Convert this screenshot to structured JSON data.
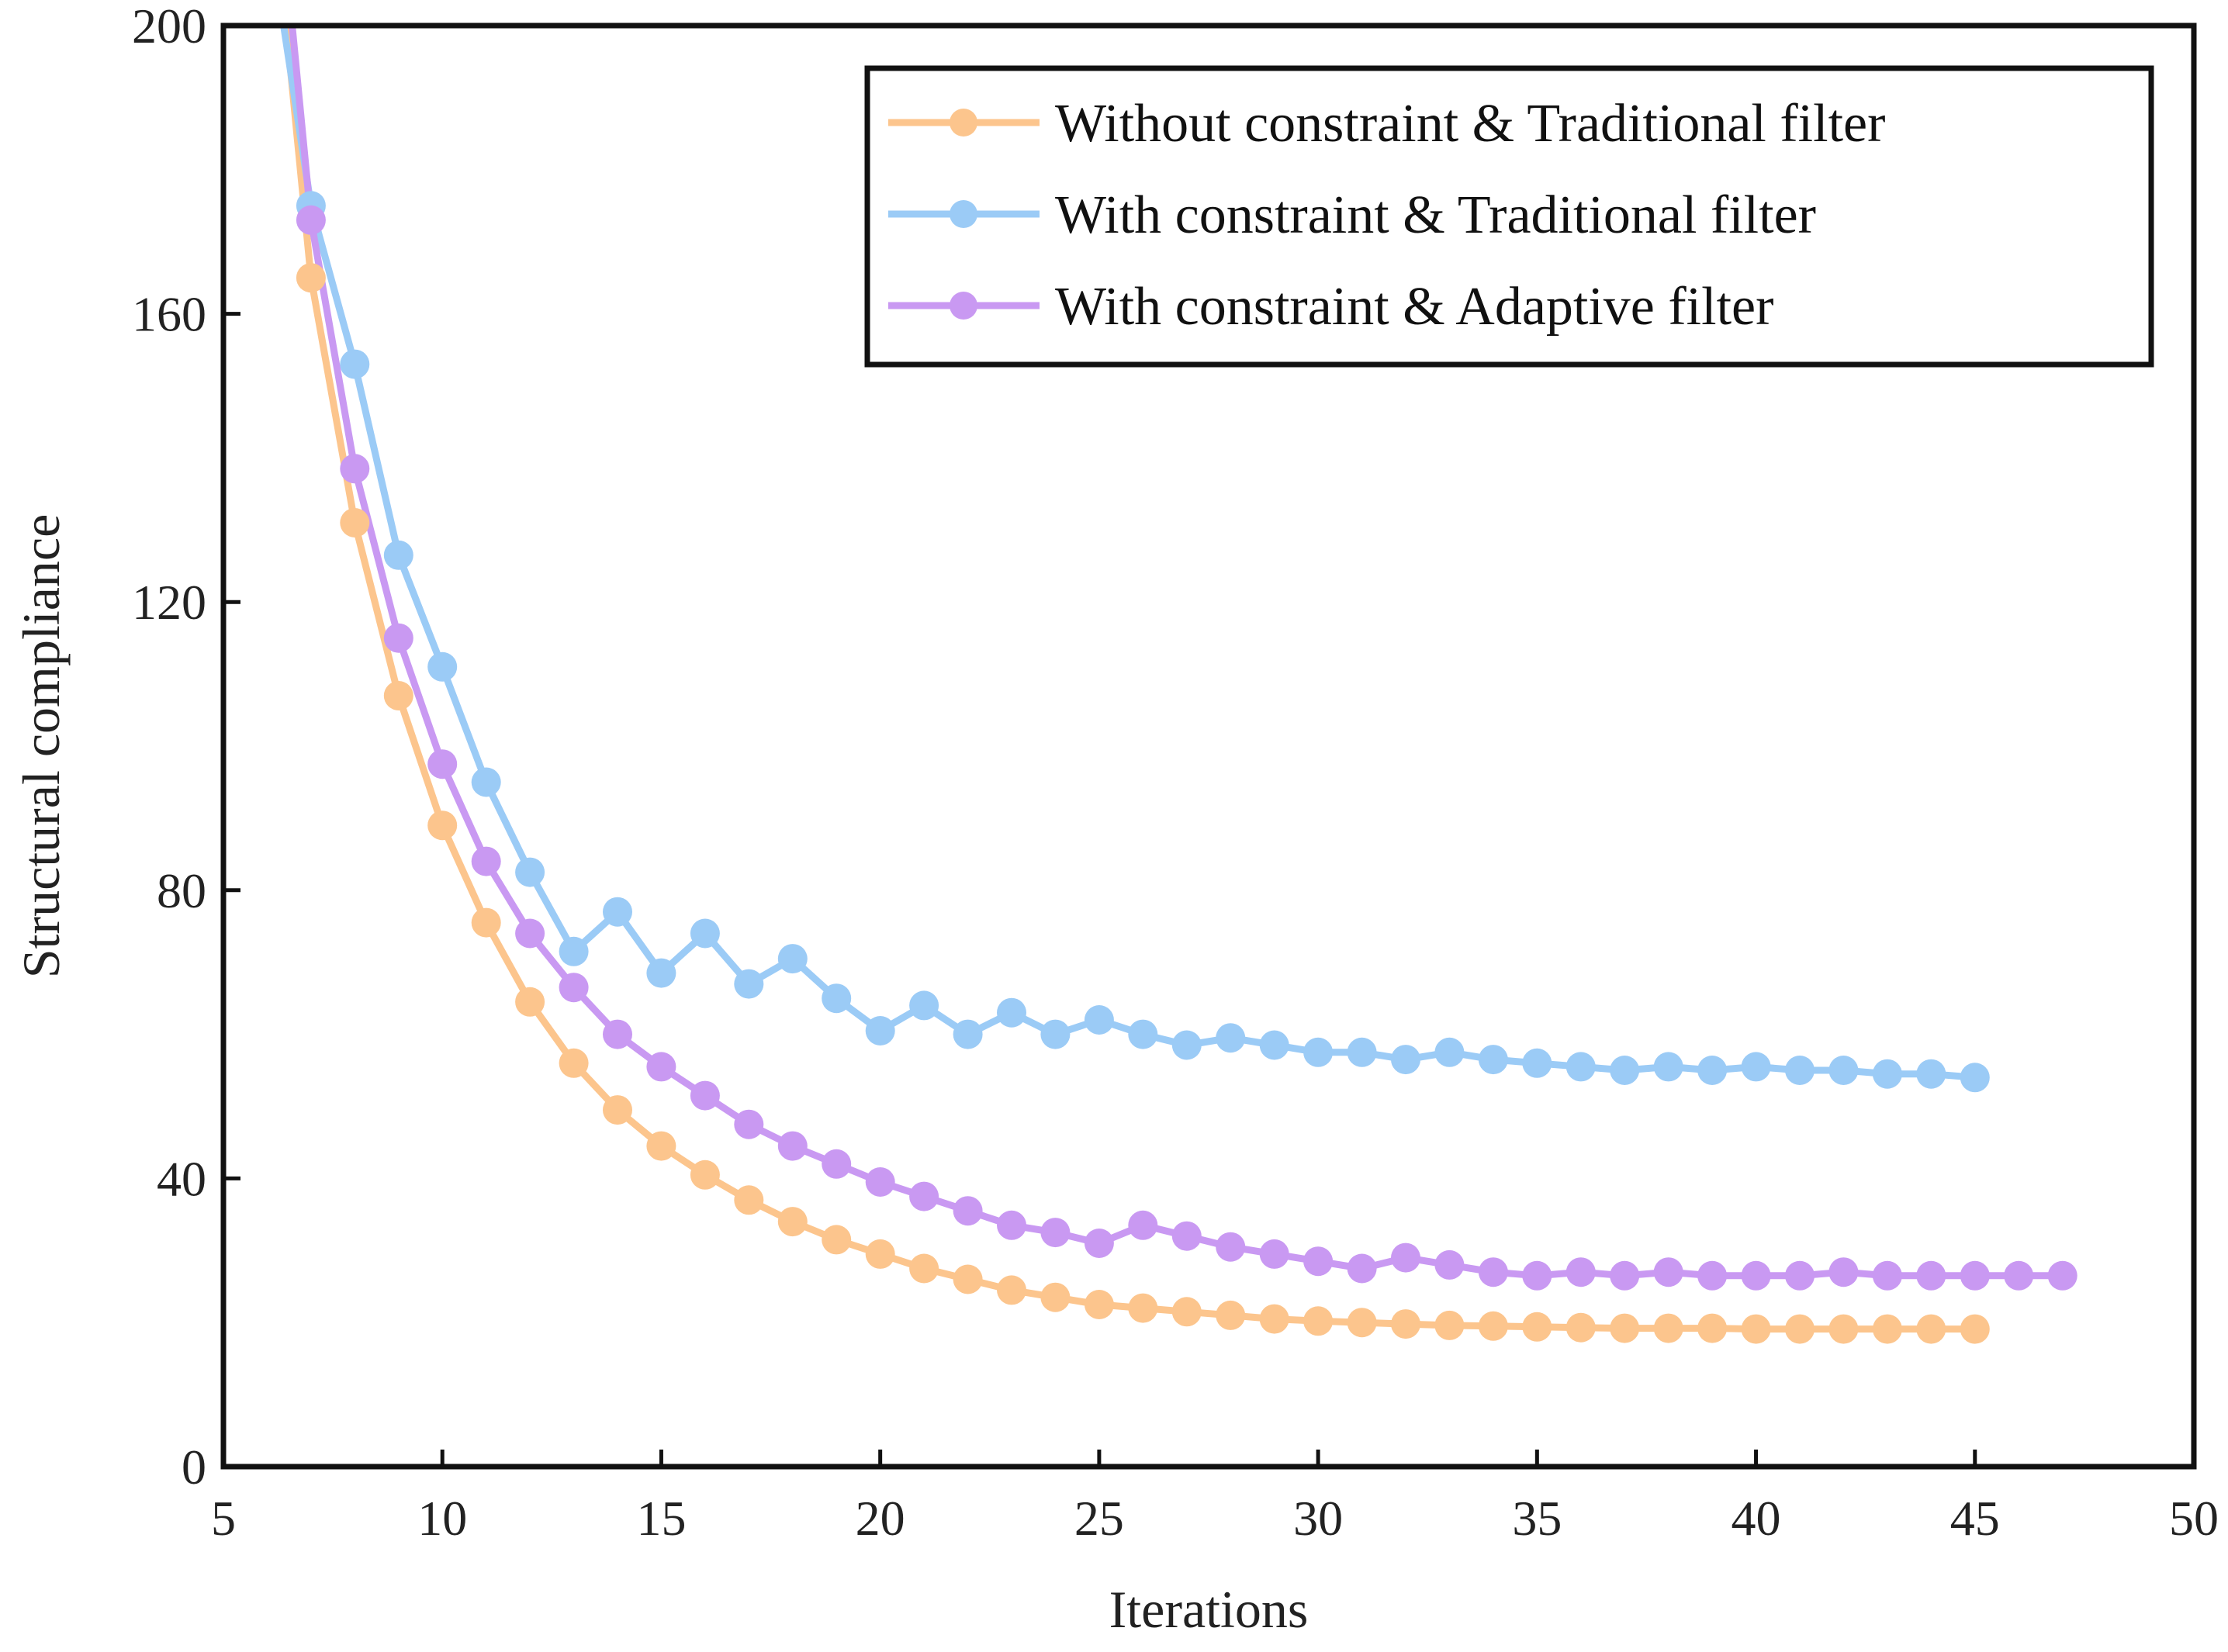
{
  "chart_data": {
    "type": "line",
    "title": "",
    "xlabel": "Iterations",
    "ylabel": "Structural compliance",
    "xlim": [
      5,
      50
    ],
    "ylim": [
      0,
      200
    ],
    "xticks": [
      5,
      10,
      15,
      20,
      25,
      30,
      35,
      40,
      45,
      50
    ],
    "yticks": [
      0,
      40,
      80,
      120,
      160,
      200
    ],
    "xtick_labels": [
      "5",
      "10",
      "15",
      "20",
      "25",
      "30",
      "35",
      "40",
      "45",
      "50"
    ],
    "ytick_labels": [
      "0",
      "40",
      "80",
      "120",
      "160",
      "200"
    ],
    "grid": false,
    "legend_position": "top-right",
    "series": [
      {
        "name": "Without constraint & Traditional filter",
        "color": "#fcc58d",
        "x": [
          7,
          8,
          9,
          10,
          11,
          12,
          13,
          14,
          15,
          16,
          17,
          18,
          19,
          20,
          21,
          22,
          23,
          24,
          25,
          26,
          27,
          28,
          29,
          30,
          31,
          32,
          33,
          34,
          35,
          36,
          37,
          38,
          39,
          40,
          41,
          42,
          43,
          44,
          45
        ],
        "y": [
          165,
          131,
          107,
          89,
          75.5,
          64.5,
          56,
          49.5,
          44.5,
          40.5,
          37,
          34,
          31.5,
          29.5,
          27.5,
          26,
          24.5,
          23.5,
          22.5,
          22,
          21.5,
          21,
          20.5,
          20.2,
          20,
          19.8,
          19.6,
          19.5,
          19.4,
          19.3,
          19.2,
          19.2,
          19.2,
          19.1,
          19.1,
          19.1,
          19.1,
          19.1,
          19.1
        ]
      },
      {
        "name": "With constraint & Traditional filter",
        "color": "#9bcbf6",
        "x": [
          7,
          8,
          9,
          10,
          11,
          12,
          13,
          14,
          15,
          16,
          17,
          18,
          19,
          20,
          21,
          22,
          23,
          24,
          25,
          26,
          27,
          28,
          29,
          30,
          31,
          32,
          33,
          34,
          35,
          36,
          37,
          38,
          39,
          40,
          41,
          42,
          43,
          44,
          45
        ],
        "y": [
          175,
          153,
          126.5,
          111,
          95,
          82.5,
          71.5,
          77,
          68.5,
          74,
          67,
          70.5,
          65,
          60.5,
          64,
          60,
          63,
          60,
          62,
          60,
          58.5,
          59.5,
          58.5,
          57.5,
          57.5,
          56.5,
          57.5,
          56.5,
          56,
          55.5,
          55,
          55.5,
          55,
          55.5,
          55,
          55,
          54.5,
          54.5,
          54
        ]
      },
      {
        "name": "With constraint & Adaptive filter",
        "color": "#c999f2",
        "x": [
          7,
          8,
          9,
          10,
          11,
          12,
          13,
          14,
          15,
          16,
          17,
          18,
          19,
          20,
          21,
          22,
          23,
          24,
          25,
          26,
          27,
          28,
          29,
          30,
          31,
          32,
          33,
          34,
          35,
          36,
          37,
          38,
          39,
          40,
          41,
          42,
          43,
          44,
          45,
          46,
          47
        ],
        "y": [
          173,
          138.5,
          115,
          97.5,
          84,
          74,
          66.5,
          60,
          55.5,
          51.5,
          47.5,
          44.5,
          42,
          39.5,
          37.5,
          35.5,
          33.5,
          32.5,
          31,
          33.5,
          32,
          30.5,
          29.5,
          28.5,
          27.5,
          29,
          28,
          27,
          26.5,
          27,
          26.5,
          27,
          26.5,
          26.5,
          26.5,
          27,
          26.5,
          26.5,
          26.5,
          26.5,
          26.5
        ]
      }
    ]
  }
}
